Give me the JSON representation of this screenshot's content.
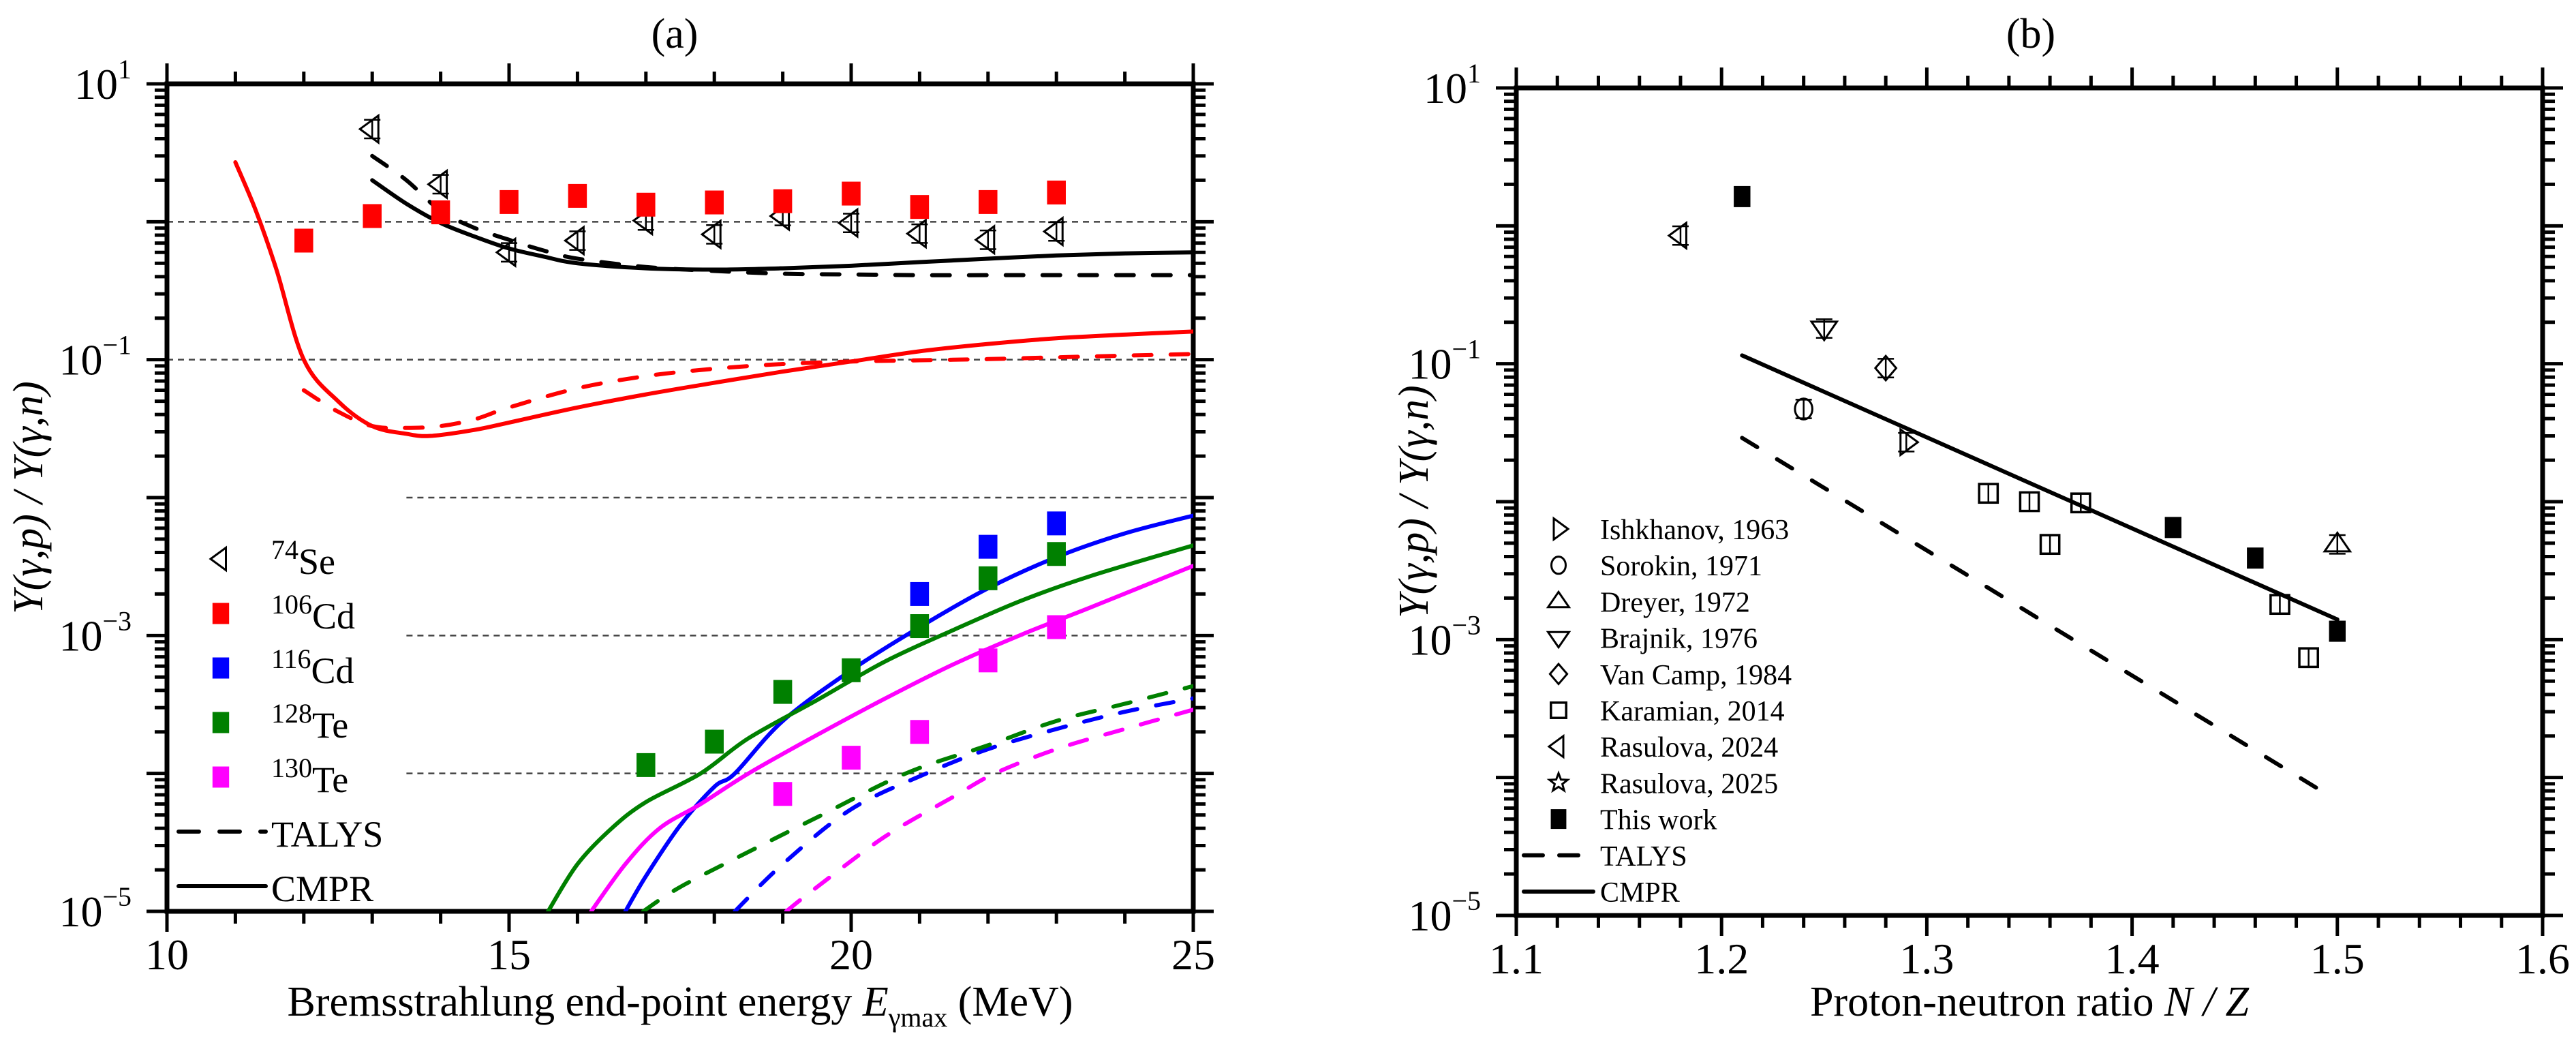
{
  "chart_data": [
    {
      "id": "a",
      "type": "scatter",
      "title": "(a)",
      "xlabel": "Bremsstrahlung end-point energy",
      "xlabel_symbol": "E",
      "xlabel_subscript": "γmax",
      "xlabel_unit": "(MeV)",
      "ylabel": "Y(γ,p) / Y(γ,n)",
      "xlim": [
        10,
        25
      ],
      "ylim": [
        1e-05,
        10
      ],
      "yscale": "log",
      "xticks": [
        10,
        15,
        20,
        25
      ],
      "xtick_labels": [
        "10",
        "15",
        "20",
        "25"
      ],
      "yticks": [
        10,
        0.1,
        0.001,
        1e-05
      ],
      "ytick_labels": [
        {
          "base": "10",
          "exp": "1"
        },
        {
          "base": "10",
          "exp": "−1"
        },
        {
          "base": "10",
          "exp": "−3"
        },
        {
          "base": "10",
          "exp": "−5"
        }
      ],
      "grid_lines": [
        1,
        0.1,
        0.01,
        0.001,
        0.0001
      ],
      "legend_position": "bottom-left",
      "series": [
        {
          "name": "74Se",
          "mass": "74",
          "element": "Se",
          "marker": "triangle-left-open",
          "color": "#000000",
          "x": [
            13,
            14,
            15,
            16,
            17,
            18,
            19,
            20,
            21,
            22,
            23
          ],
          "y": [
            4.7,
            1.87,
            0.6,
            0.73,
            1.02,
            0.81,
            1.1,
            0.98,
            0.82,
            0.74,
            0.85
          ]
        },
        {
          "name": "106Cd",
          "mass": "106",
          "element": "Cd",
          "marker": "square-filled",
          "color": "#ff0000",
          "x": [
            12,
            13,
            14,
            15,
            16,
            17,
            18,
            19,
            20,
            21,
            22,
            23
          ],
          "y": [
            0.73,
            1.1,
            1.17,
            1.39,
            1.54,
            1.33,
            1.38,
            1.41,
            1.6,
            1.28,
            1.39,
            1.63
          ]
        },
        {
          "name": "116Cd",
          "mass": "116",
          "element": "Cd",
          "marker": "square-filled",
          "color": "#0000ff",
          "x": [
            21,
            22,
            23
          ],
          "y": [
            0.002,
            0.0044,
            0.0065
          ]
        },
        {
          "name": "128Te",
          "mass": "128",
          "element": "Te",
          "marker": "square-filled",
          "color": "#008000",
          "x": [
            17,
            18,
            19,
            20,
            21,
            22,
            23
          ],
          "y": [
            0.000115,
            0.00017,
            0.00039,
            0.00056,
            0.00117,
            0.0026,
            0.0039
          ]
        },
        {
          "name": "130Te",
          "mass": "130",
          "element": "Te",
          "marker": "square-filled",
          "color": "#ff00ff",
          "x": [
            19,
            20,
            21,
            22,
            23
          ],
          "y": [
            7.1e-05,
            0.00013,
            0.0002,
            0.00066,
            0.00115
          ]
        }
      ],
      "curves": [
        {
          "name": "74Se CMPR",
          "style": "solid",
          "color": "#000000",
          "x": [
            13,
            13.5,
            14,
            14.5,
            15,
            15.5,
            16,
            17,
            18,
            19,
            20,
            21,
            22,
            23,
            24,
            25
          ],
          "y": [
            2.0,
            1.35,
            0.98,
            0.78,
            0.64,
            0.56,
            0.5,
            0.46,
            0.45,
            0.46,
            0.48,
            0.51,
            0.54,
            0.57,
            0.59,
            0.6
          ]
        },
        {
          "name": "74Se TALYS",
          "style": "dashed",
          "color": "#000000",
          "x": [
            13,
            13.5,
            14,
            14.5,
            15,
            15.5,
            16,
            17,
            18,
            19,
            20,
            21,
            22,
            23,
            24,
            25
          ],
          "y": [
            3.0,
            2.0,
            1.2,
            0.9,
            0.74,
            0.62,
            0.54,
            0.47,
            0.44,
            0.42,
            0.415,
            0.41,
            0.41,
            0.41,
            0.41,
            0.41
          ]
        },
        {
          "name": "106Cd CMPR",
          "style": "solid",
          "color": "#ff0000",
          "x": [
            11,
            11.3,
            11.6,
            12,
            12.5,
            13,
            13.5,
            13.85,
            14.5,
            15,
            16,
            17,
            18,
            19,
            20,
            21,
            22,
            23,
            24,
            25
          ],
          "y": [
            2.7,
            1.2,
            0.45,
            0.1,
            0.05,
            0.033,
            0.029,
            0.028,
            0.031,
            0.035,
            0.045,
            0.056,
            0.068,
            0.082,
            0.097,
            0.115,
            0.13,
            0.143,
            0.152,
            0.16
          ]
        },
        {
          "name": "106Cd TALYS",
          "style": "dashed",
          "color": "#ff0000",
          "x": [
            12,
            12.5,
            13,
            13.5,
            14,
            14.5,
            15,
            16,
            17,
            18,
            19,
            20,
            21,
            22,
            23,
            24,
            25
          ],
          "y": [
            0.06,
            0.042,
            0.033,
            0.032,
            0.033,
            0.037,
            0.045,
            0.062,
            0.076,
            0.086,
            0.093,
            0.097,
            0.099,
            0.101,
            0.104,
            0.107,
            0.11
          ]
        },
        {
          "name": "116Cd CMPR",
          "style": "solid",
          "color": "#0000ff",
          "x": [
            16.7,
            17,
            17.5,
            18,
            18.3,
            19,
            20,
            21,
            22,
            23,
            24,
            25
          ],
          "y": [
            1e-05,
            1.8e-05,
            4.2e-05,
            8e-05,
            0.0001,
            0.00024,
            0.00056,
            0.00115,
            0.0022,
            0.0037,
            0.0055,
            0.0074
          ]
        },
        {
          "name": "128Te CMPR",
          "style": "solid",
          "color": "#008000",
          "x": [
            15.57,
            16,
            16.5,
            17,
            17.8,
            18.5,
            19.5,
            20.5,
            21.5,
            22.5,
            23.5,
            25
          ],
          "y": [
            1e-05,
            2.2e-05,
            4e-05,
            6.2e-05,
            0.0001,
            0.00018,
            0.00034,
            0.00065,
            0.0011,
            0.0018,
            0.0027,
            0.0045
          ]
        },
        {
          "name": "130Te CMPR",
          "style": "solid",
          "color": "#ff00ff",
          "x": [
            16.2,
            16.7,
            17.2,
            17.8,
            18.5,
            19.5,
            20.5,
            21.5,
            22.5,
            23.5,
            25
          ],
          "y": [
            1e-05,
            2.2e-05,
            4e-05,
            6e-05,
            0.0001,
            0.00019,
            0.00035,
            0.00062,
            0.00102,
            0.0016,
            0.0032
          ]
        },
        {
          "name": "116Cd TALYS",
          "style": "dashed",
          "color": "#0000ff",
          "x": [
            18.3,
            19,
            20,
            21.1,
            22,
            23,
            24,
            25
          ],
          "y": [
            1e-05,
            2.2e-05,
            5.5e-05,
            0.0001,
            0.00015,
            0.00021,
            0.00028,
            0.00035
          ]
        },
        {
          "name": "128Te TALYS",
          "style": "dashed",
          "color": "#008000",
          "x": [
            16.96,
            17.5,
            18.5,
            19.5,
            20.8,
            22,
            23,
            24,
            25
          ],
          "y": [
            1e-05,
            1.5e-05,
            2.7e-05,
            4.8e-05,
            0.0001,
            0.00016,
            0.00024,
            0.00032,
            0.00043
          ]
        },
        {
          "name": "130Te TALYS",
          "style": "dashed",
          "color": "#ff00ff",
          "x": [
            19.05,
            19.5,
            20.5,
            21.5,
            22.1,
            23,
            24,
            25
          ],
          "y": [
            1e-05,
            1.5e-05,
            3.5e-05,
            6.8e-05,
            0.0001,
            0.00015,
            0.00021,
            0.00029
          ]
        }
      ],
      "legend": [
        {
          "label_sup": "74",
          "label": "Se",
          "marker": "triangle-left-open",
          "color": "#000000"
        },
        {
          "label_sup": "106",
          "label": "Cd",
          "marker": "square-filled",
          "color": "#ff0000"
        },
        {
          "label_sup": "116",
          "label": "Cd",
          "marker": "square-filled",
          "color": "#0000ff"
        },
        {
          "label_sup": "128",
          "label": "Te",
          "marker": "square-filled",
          "color": "#008000"
        },
        {
          "label_sup": "130",
          "label": "Te",
          "marker": "square-filled",
          "color": "#ff00ff"
        },
        {
          "label_sup": "",
          "label": "TALYS",
          "marker": "dashed-line",
          "color": "#000000"
        },
        {
          "label_sup": "",
          "label": "CMPR",
          "marker": "solid-line",
          "color": "#000000"
        }
      ]
    },
    {
      "id": "b",
      "type": "scatter",
      "title": "(b)",
      "xlabel": "Proton-neutron ratio",
      "xlabel_symbol": "N / Z",
      "ylabel": "Y(γ,p) / Y(γ,n)",
      "xlim": [
        1.1,
        1.6
      ],
      "ylim": [
        1e-05,
        10
      ],
      "yscale": "log",
      "xticks": [
        1.1,
        1.2,
        1.3,
        1.4,
        1.5,
        1.6
      ],
      "xtick_labels": [
        "1.1",
        "1.2",
        "1.3",
        "1.4",
        "1.5",
        "1.6"
      ],
      "yticks": [
        10,
        0.1,
        0.001,
        1e-05
      ],
      "ytick_labels": [
        {
          "base": "10",
          "exp": "1"
        },
        {
          "base": "10",
          "exp": "−1"
        },
        {
          "base": "10",
          "exp": "−3"
        },
        {
          "base": "10",
          "exp": "−5"
        }
      ],
      "legend_position": "bottom-left",
      "series": [
        {
          "name": "Ishkhanov, 1963",
          "marker": "triangle-right-open",
          "color": "#000000",
          "x": [
            1.29
          ],
          "y": [
            0.027
          ]
        },
        {
          "name": "Sorokin, 1971",
          "marker": "circle-open",
          "color": "#000000",
          "x": [
            1.24
          ],
          "y": [
            0.047
          ]
        },
        {
          "name": "Dreyer, 1972",
          "marker": "triangle-up-open",
          "color": "#000000",
          "x": [
            1.5
          ],
          "y": [
            0.0049
          ]
        },
        {
          "name": "Brajnik, 1976",
          "marker": "triangle-down-open",
          "color": "#000000",
          "x": [
            1.25
          ],
          "y": [
            0.18
          ]
        },
        {
          "name": "Van Camp, 1984",
          "marker": "diamond-open",
          "color": "#000000",
          "x": [
            1.28
          ],
          "y": [
            0.093
          ]
        },
        {
          "name": "Karamian, 2014",
          "marker": "square-open",
          "color": "#000000",
          "x": [
            1.33,
            1.35,
            1.36,
            1.375,
            1.472,
            1.486
          ],
          "y": [
            0.0115,
            0.01,
            0.0049,
            0.0098,
            0.0018,
            0.00074
          ]
        },
        {
          "name": "Rasulova, 2024",
          "marker": "triangle-left-open",
          "color": "#000000",
          "x": [
            1.18
          ],
          "y": [
            0.85
          ]
        },
        {
          "name": "Rasulova, 2025",
          "marker": "star-open",
          "color": "#000000",
          "x": [],
          "y": []
        },
        {
          "name": "This work",
          "marker": "square-filled",
          "color": "#000000",
          "x": [
            1.21,
            1.42,
            1.46,
            1.5
          ],
          "y": [
            1.63,
            0.0065,
            0.0039,
            0.00115
          ]
        }
      ],
      "curves": [
        {
          "name": "TALYS",
          "style": "dashed",
          "color": "#000000",
          "x": [
            1.21,
            1.496
          ],
          "y": [
            0.029,
            7.4e-05
          ]
        },
        {
          "name": "CMPR",
          "style": "solid",
          "color": "#000000",
          "x": [
            1.21,
            1.5
          ],
          "y": [
            0.115,
            0.0014
          ]
        }
      ],
      "legend": [
        {
          "label": "Ishkhanov, 1963",
          "marker": "triangle-right-open"
        },
        {
          "label": "Sorokin, 1971",
          "marker": "circle-open"
        },
        {
          "label": "Dreyer, 1972",
          "marker": "triangle-up-open"
        },
        {
          "label": "Brajnik, 1976",
          "marker": "triangle-down-open"
        },
        {
          "label": "Van Camp, 1984",
          "marker": "diamond-open"
        },
        {
          "label": "Karamian, 2014",
          "marker": "square-open"
        },
        {
          "label": "Rasulova, 2024",
          "marker": "triangle-left-open"
        },
        {
          "label": "Rasulova, 2025",
          "marker": "star-open"
        },
        {
          "label": "This work",
          "marker": "square-filled"
        },
        {
          "label": "TALYS",
          "marker": "dashed-line"
        },
        {
          "label": "CMPR",
          "marker": "solid-line"
        }
      ]
    }
  ]
}
